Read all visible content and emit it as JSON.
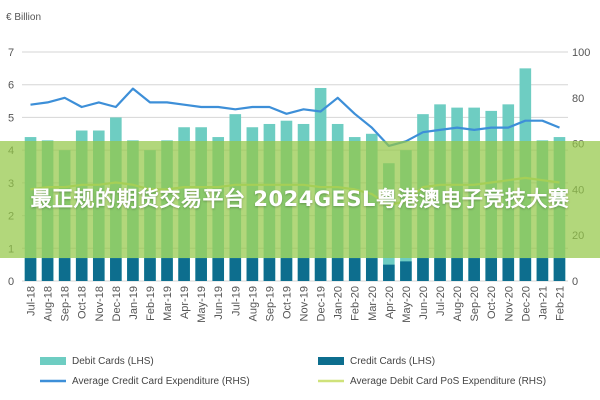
{
  "overlay_text": "最正规的期货交易平台 2024GESL粤港澳电子竞技大赛",
  "chart_data": {
    "type": "bar",
    "left_axis_unit": "€ Billion",
    "ylim_left": [
      0,
      7
    ],
    "ylim_right": [
      0,
      100
    ],
    "left_ticks": [
      "0",
      "1",
      "2",
      "3",
      "4",
      "5",
      "6",
      "7"
    ],
    "right_ticks": [
      "0",
      "20",
      "40",
      "60",
      "80",
      "100"
    ],
    "categories": [
      "Jul-18",
      "Aug-18",
      "Sep-18",
      "Oct-18",
      "Nov-18",
      "Dec-18",
      "Jan-19",
      "Feb-19",
      "Mar-19",
      "Apr-19",
      "May-19",
      "Jun-19",
      "Jul-19",
      "Aug-19",
      "Sep-19",
      "Oct-19",
      "Nov-19",
      "Dec-19",
      "Jan-20",
      "Feb-20",
      "Mar-20",
      "Apr-20",
      "May-20",
      "Jun-20",
      "Jul-20",
      "Aug-20",
      "Sep-20",
      "Oct-20",
      "Nov-20",
      "Dec-20",
      "Jan-21",
      "Feb-21"
    ],
    "x_tick_labels": [
      "Jul-18",
      "Aug-18",
      "Sep-18",
      "Oct-18",
      "Nov-18",
      "Dec-18",
      "Jan-19",
      "Feb-19",
      "Mar-19",
      "Apr-19",
      "May-19",
      "Jun-19",
      "Jul-19",
      "Aug-19",
      "Sep-19",
      "Oct-19",
      "Nov-19",
      "Dec-19",
      "Jan-20",
      "Feb-20",
      "Mar-20",
      "Apr-20",
      "May-20",
      "Jun-20",
      "Jul-20",
      "Aug-20",
      "Sep-20",
      "Oct-20",
      "Nov-20",
      "Dec-20",
      "Jan-21",
      "Feb-21"
    ],
    "series": [
      {
        "name": "Debit Cards (LHS)",
        "kind": "bar",
        "axis": "left",
        "color": "#6ecdc2",
        "values": [
          4.4,
          4.3,
          4.0,
          4.6,
          4.6,
          5.0,
          4.3,
          4.0,
          4.3,
          4.7,
          4.7,
          4.4,
          5.1,
          4.7,
          4.8,
          4.9,
          4.8,
          5.9,
          4.8,
          4.4,
          4.5,
          3.6,
          4.0,
          5.1,
          5.4,
          5.3,
          5.3,
          5.2,
          5.4,
          6.5,
          4.3,
          4.4
        ]
      },
      {
        "name": "Credit Cards (LHS)",
        "kind": "bar",
        "axis": "left",
        "color": "#0d6e8e",
        "values": [
          0.7,
          0.7,
          0.7,
          0.7,
          0.7,
          0.7,
          0.7,
          0.7,
          0.7,
          0.7,
          0.7,
          0.7,
          0.7,
          0.7,
          0.7,
          0.7,
          0.7,
          0.7,
          0.7,
          0.7,
          0.7,
          0.5,
          0.6,
          0.7,
          0.7,
          0.7,
          0.7,
          0.7,
          0.7,
          0.7,
          0.7,
          0.7
        ]
      },
      {
        "name": "Average Credit Card Expenditure (RHS)",
        "kind": "line",
        "axis": "right",
        "color": "#3d8fd8",
        "values": [
          77,
          78,
          80,
          76,
          78,
          76,
          84,
          78,
          78,
          77,
          76,
          76,
          75,
          76,
          76,
          73,
          75,
          74,
          80,
          73,
          67,
          59,
          61,
          65,
          66,
          67,
          66,
          67,
          67,
          70,
          70,
          67
        ]
      },
      {
        "name": "Average Debit Card PoS Expenditure (RHS)",
        "kind": "line",
        "axis": "right",
        "color": "#cfe27a",
        "values": [
          40,
          41,
          41,
          42,
          42,
          43,
          42,
          40,
          40,
          41,
          41,
          41,
          42,
          42,
          42,
          42,
          42,
          41,
          41,
          40,
          38,
          33,
          35,
          41,
          42,
          42,
          42,
          43,
          44,
          45,
          44,
          43
        ]
      }
    ],
    "legend": [
      "Debit Cards (LHS)",
      "Credit Cards (LHS)",
      "Average Credit Card Expenditure (RHS)",
      "Average Debit Card PoS Expenditure (RHS)"
    ],
    "legend_position": "bottom",
    "grid": true
  }
}
